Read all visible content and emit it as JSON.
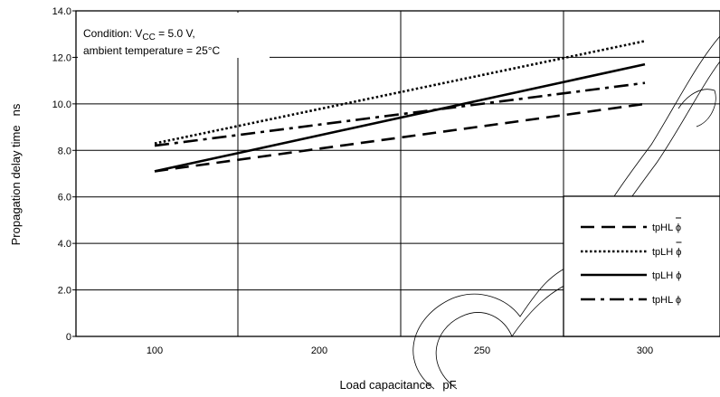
{
  "chart_data": {
    "type": "line",
    "xlabel": "Load capacitance",
    "xunit": "pF",
    "ylabel": "Propagation delay time",
    "yunit": "ns",
    "x_ticks": [
      100,
      200,
      250,
      300
    ],
    "y_ticks": [
      "0",
      "2.0",
      "4.0",
      "6.0",
      "8.0",
      "10.0",
      "12.0",
      "14.0"
    ],
    "ylim": [
      0,
      14
    ],
    "grid": true,
    "condition": {
      "line1_prefix": "Condition: V",
      "line1_sub": "CC",
      "line1_suffix": " = 5.0 V,",
      "line2": "ambient temperature = 25°C"
    },
    "legend_placement": "bottom-right",
    "series": [
      {
        "name": "tpHL",
        "phi": "ϕ",
        "phi_bar": true,
        "style": "dashed",
        "x": [
          100,
          300
        ],
        "y": [
          7.1,
          10.0
        ]
      },
      {
        "name": "tpLH",
        "phi": "ϕ",
        "phi_bar": true,
        "style": "dotted",
        "x": [
          100,
          300
        ],
        "y": [
          8.3,
          12.7
        ]
      },
      {
        "name": "tpLH",
        "phi": "ϕ",
        "phi_bar": false,
        "style": "solid",
        "x": [
          100,
          300
        ],
        "y": [
          7.1,
          11.7
        ]
      },
      {
        "name": "tpHL",
        "phi": "ϕ",
        "phi_bar": false,
        "style": "dashdot",
        "x": [
          100,
          300
        ],
        "y": [
          8.2,
          10.9
        ]
      }
    ]
  }
}
